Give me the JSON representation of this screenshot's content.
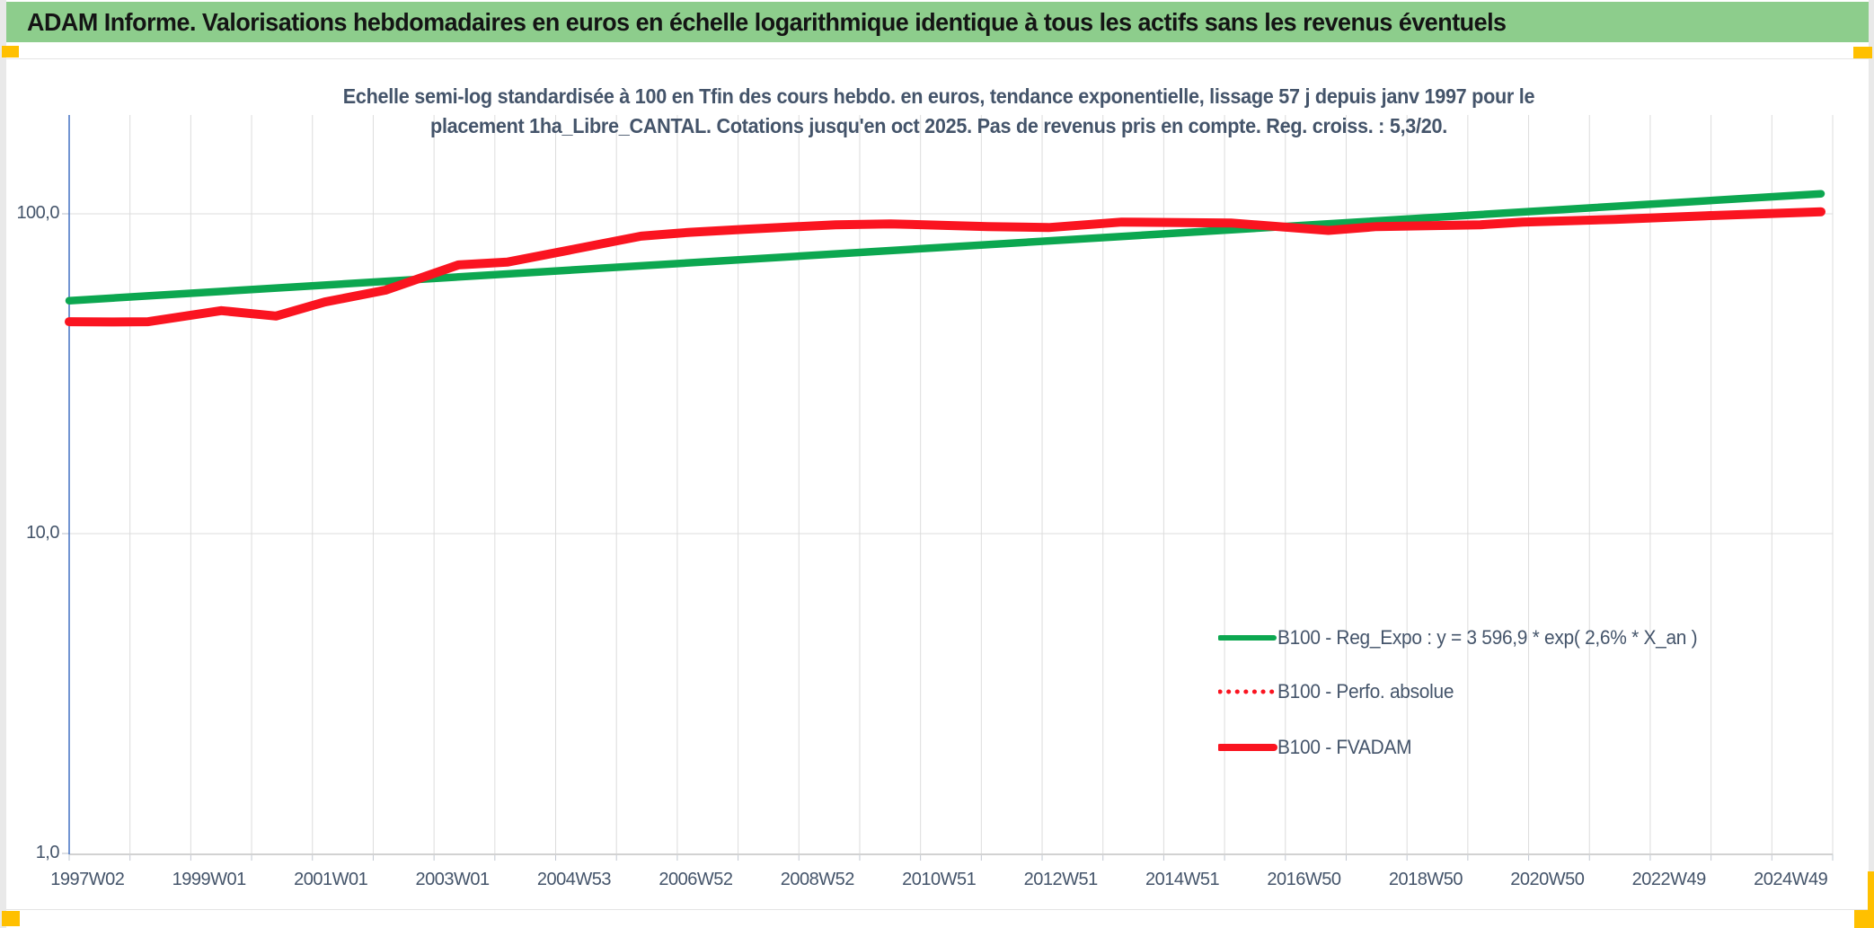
{
  "banner": {
    "title": "ADAM Informe. Valorisations hebdomadaires en euros en échelle logarithmique identique à tous les actifs sans les revenus éventuels"
  },
  "accents": {
    "banner_green": "#8DCD8C",
    "marker_yellow": "#FFC000",
    "text_slate": "#44546A",
    "axis_blue": "#4472C4",
    "gridline_gray": "#DCDCDC",
    "line_green": "#0CA750",
    "line_red": "#FA1420"
  },
  "chart_data": {
    "type": "line",
    "title_line1": "Echelle semi-log standardisée à 100 en Tfin des cours hebdo. en euros, tendance exponentielle, lissage 57 j depuis janv 1997 pour le",
    "title_line2": "placement 1ha_Libre_CANTAL. Cotations jusqu'en oct 2025. Pas de revenus pris en compte. Reg. croiss. : 5,3/20.",
    "y_scale": "log",
    "ylim": [
      1,
      204
    ],
    "x_range_years": [
      1997.0,
      2025.8
    ],
    "grid": {
      "vertical": "yearly",
      "horizontal": "decades"
    },
    "legend_position": "inside-lower-right",
    "y_ticks": [
      {
        "label": "100,0",
        "value": 100
      },
      {
        "label": "10,0",
        "value": 10
      },
      {
        "label": "1,0",
        "value": 1
      }
    ],
    "x_tick_labels": [
      "1997W02",
      "1999W01",
      "2001W01",
      "2003W01",
      "2004W53",
      "2006W52",
      "2008W52",
      "2010W51",
      "2012W51",
      "2014W51",
      "2016W50",
      "2018W50",
      "2020W50",
      "2022W49",
      "2024W49"
    ],
    "series": [
      {
        "name": "B100 - Reg_Expo : y = 3 596,9 * exp( 2,6% *  X_an )",
        "color": "#0CA750",
        "style": "solid",
        "stroke_width": 8.5,
        "legend_stroke_width": 6,
        "points": [
          [
            1997.0,
            53.5
          ],
          [
            2025.8,
            115.5
          ]
        ]
      },
      {
        "name": "B100 - Perfo. absolue",
        "color": "#FA1420",
        "style": "dotted",
        "stroke_width": 5,
        "legend_stroke_width": 5,
        "points": [
          [
            1997.0,
            46.0
          ],
          [
            1997.7,
            45.9
          ],
          [
            1998.3,
            46.0
          ],
          [
            1999.5,
            49.8
          ],
          [
            2000.4,
            47.9
          ],
          [
            2001.2,
            53.0
          ],
          [
            2002.2,
            57.7
          ],
          [
            2003.4,
            69.2
          ],
          [
            2004.2,
            70.6
          ],
          [
            2005.3,
            77.5
          ],
          [
            2006.4,
            85.1
          ],
          [
            2007.2,
            87.5
          ],
          [
            2008.1,
            89.5
          ],
          [
            2009.6,
            92.4
          ],
          [
            2010.5,
            93.0
          ],
          [
            2012.1,
            91.2
          ],
          [
            2013.1,
            90.6
          ],
          [
            2014.3,
            94.2
          ],
          [
            2016.1,
            93.6
          ],
          [
            2017.7,
            88.7
          ],
          [
            2018.5,
            91.2
          ],
          [
            2020.2,
            92.4
          ],
          [
            2020.9,
            94.2
          ],
          [
            2022.4,
            96.1
          ],
          [
            2023.9,
            98.6
          ],
          [
            2025.8,
            101.5
          ]
        ]
      },
      {
        "name": "B100 - FVADAM",
        "color": "#FA1420",
        "style": "solid",
        "stroke_width": 10,
        "legend_stroke_width": 8,
        "points": [
          [
            1997.0,
            46.0
          ],
          [
            1997.7,
            45.9
          ],
          [
            1998.3,
            46.0
          ],
          [
            1999.5,
            49.8
          ],
          [
            2000.4,
            47.9
          ],
          [
            2001.2,
            53.0
          ],
          [
            2002.2,
            57.7
          ],
          [
            2003.4,
            69.2
          ],
          [
            2004.2,
            70.6
          ],
          [
            2005.3,
            77.5
          ],
          [
            2006.4,
            85.1
          ],
          [
            2007.2,
            87.5
          ],
          [
            2008.1,
            89.5
          ],
          [
            2009.6,
            92.4
          ],
          [
            2010.5,
            93.0
          ],
          [
            2012.1,
            91.2
          ],
          [
            2013.1,
            90.6
          ],
          [
            2014.3,
            94.2
          ],
          [
            2016.1,
            93.6
          ],
          [
            2017.7,
            88.7
          ],
          [
            2018.5,
            91.2
          ],
          [
            2020.2,
            92.4
          ],
          [
            2020.9,
            94.2
          ],
          [
            2022.4,
            96.1
          ],
          [
            2023.9,
            98.6
          ],
          [
            2025.8,
            101.5
          ]
        ]
      }
    ]
  }
}
